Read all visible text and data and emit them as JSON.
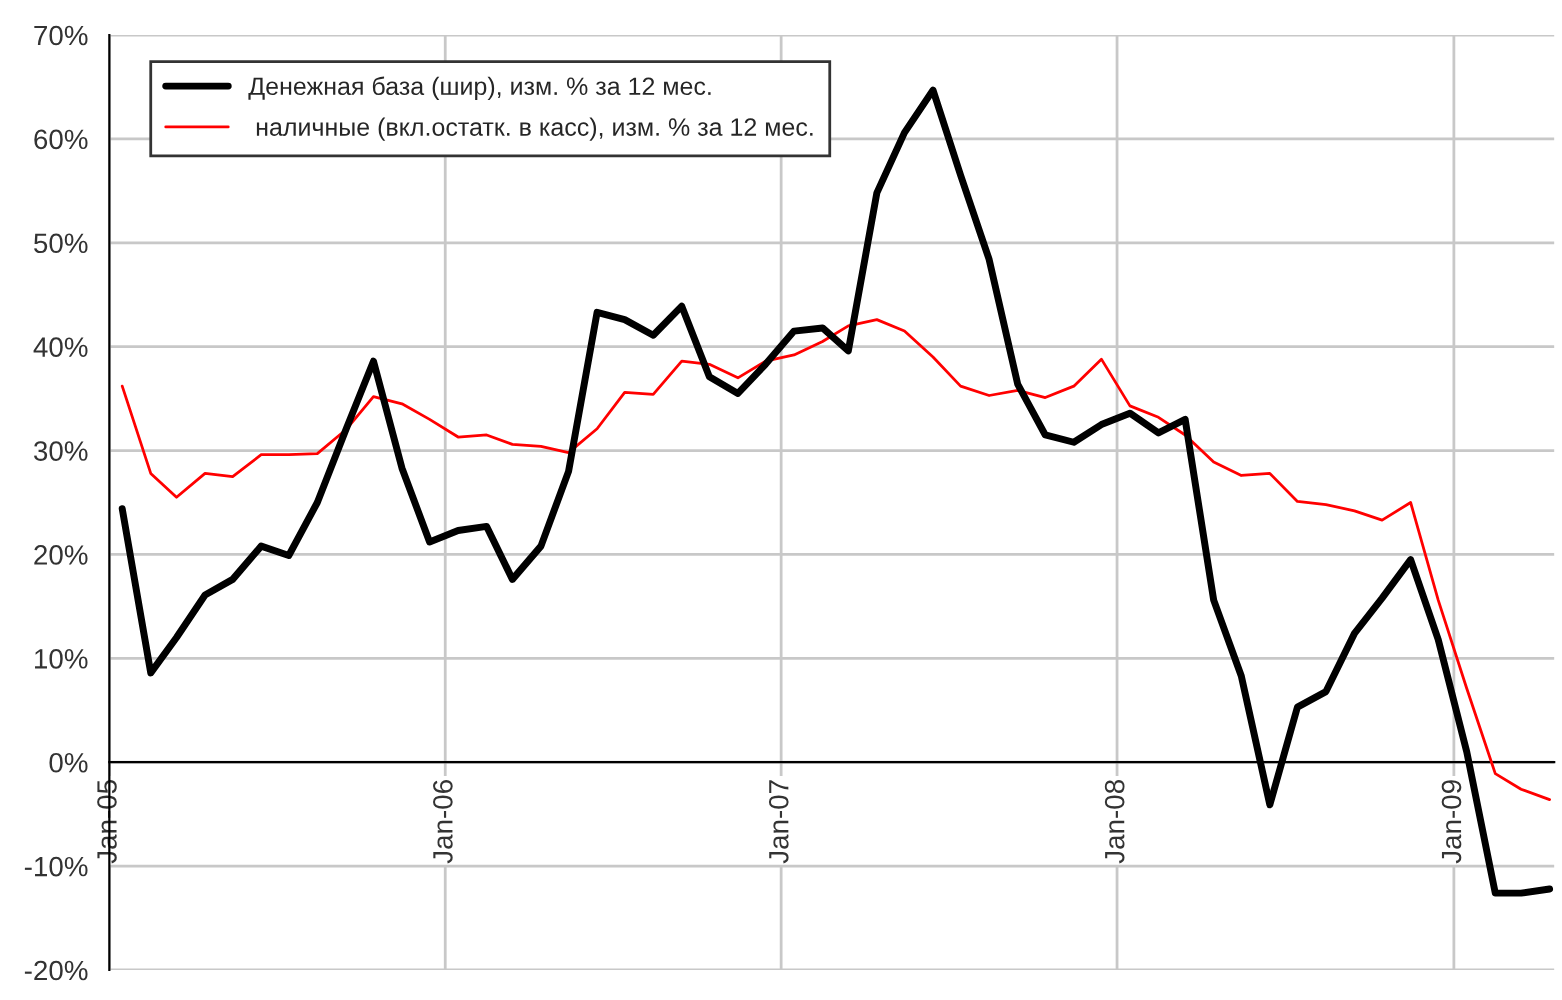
{
  "chart_data": {
    "type": "line",
    "x": [
      "2005-01-15",
      "2005-02-15",
      "2005-03-15",
      "2005-04-15",
      "2005-05-15",
      "2005-06-15",
      "2005-07-15",
      "2005-08-15",
      "2005-09-15",
      "2005-10-15",
      "2005-11-15",
      "2005-12-15",
      "2006-01-15",
      "2006-02-15",
      "2006-03-15",
      "2006-04-15",
      "2006-05-15",
      "2006-06-15",
      "2006-07-15",
      "2006-08-15",
      "2006-09-15",
      "2006-10-15",
      "2006-11-15",
      "2006-12-15",
      "2007-01-15",
      "2007-02-15",
      "2007-03-15",
      "2007-04-15",
      "2007-05-15",
      "2007-06-15",
      "2007-07-15",
      "2007-08-15",
      "2007-09-15",
      "2007-10-15",
      "2007-11-15",
      "2007-12-15",
      "2008-01-15",
      "2008-02-15",
      "2008-03-15",
      "2008-04-15",
      "2008-05-15",
      "2008-06-15",
      "2008-07-15",
      "2008-08-15",
      "2008-09-15",
      "2008-10-15",
      "2008-11-15",
      "2008-12-15",
      "2009-01-15",
      "2009-02-15",
      "2009-03-15",
      "2009-04-15"
    ],
    "series": [
      {
        "name": "Денежная база (шир), изм. % за 12 мес.",
        "color": "#000000",
        "values": [
          24.4,
          8.6,
          12,
          16.1,
          17.6,
          20.8,
          19.9,
          25,
          32,
          38.6,
          28.3,
          21.2,
          22.3,
          22.7,
          17.6,
          20.8,
          28,
          43.3,
          42.6,
          41.1,
          43.9,
          37.1,
          35.5,
          38.3,
          41.5,
          41.8,
          39.6,
          54.8,
          60.6,
          64.7,
          56.5,
          48.4,
          36.4,
          31.5,
          30.8,
          32.5,
          33.6,
          31.7,
          33,
          15.6,
          8.3,
          -4.1,
          5.3,
          6.8,
          12.4,
          15.8,
          19.5,
          11.8,
          1,
          -12.6,
          -12.6,
          -12.2
        ]
      },
      {
        "name": " наличные (вкл.остатк. в касс), изм. % за 12 мес.",
        "color": "#ff0000",
        "values": [
          36.2,
          27.8,
          25.5,
          27.8,
          27.5,
          29.6,
          29.6,
          29.7,
          32,
          35.2,
          34.5,
          33,
          31.3,
          31.5,
          30.6,
          30.4,
          29.8,
          32.1,
          35.6,
          35.4,
          38.6,
          38.3,
          37,
          38.6,
          39.2,
          40.5,
          42,
          42.6,
          41.5,
          39,
          36.2,
          35.3,
          35.8,
          35.1,
          36.2,
          38.8,
          34.3,
          33.2,
          31.5,
          28.9,
          27.6,
          27.8,
          25.1,
          24.8,
          24.2,
          23.3,
          25,
          15.6,
          7.1,
          -1.1,
          -2.6,
          -3.6
        ]
      }
    ],
    "xlim": [
      "2005-01-01",
      "2009-04-20"
    ],
    "xticks": [
      {
        "value": "2005-01-01",
        "label": "Jan-05"
      },
      {
        "value": "2006-01-01",
        "label": "Jan-06"
      },
      {
        "value": "2007-01-01",
        "label": "Jan-07"
      },
      {
        "value": "2008-01-01",
        "label": "Jan-08"
      },
      {
        "value": "2009-01-01",
        "label": "Jan-09"
      }
    ],
    "ylim": [
      -20,
      70
    ],
    "yticks": [
      {
        "value": -20,
        "label": "-20%"
      },
      {
        "value": -10,
        "label": "-10%"
      },
      {
        "value": 0,
        "label": "0%"
      },
      {
        "value": 10,
        "label": "10%"
      },
      {
        "value": 20,
        "label": "20%"
      },
      {
        "value": 30,
        "label": "30%"
      },
      {
        "value": 40,
        "label": "40%"
      },
      {
        "value": 50,
        "label": "50%"
      },
      {
        "value": 60,
        "label": "60%"
      },
      {
        "value": 70,
        "label": "70%"
      }
    ],
    "grid": true,
    "legend": "top left",
    "marker": "none",
    "line_style": "solid"
  }
}
